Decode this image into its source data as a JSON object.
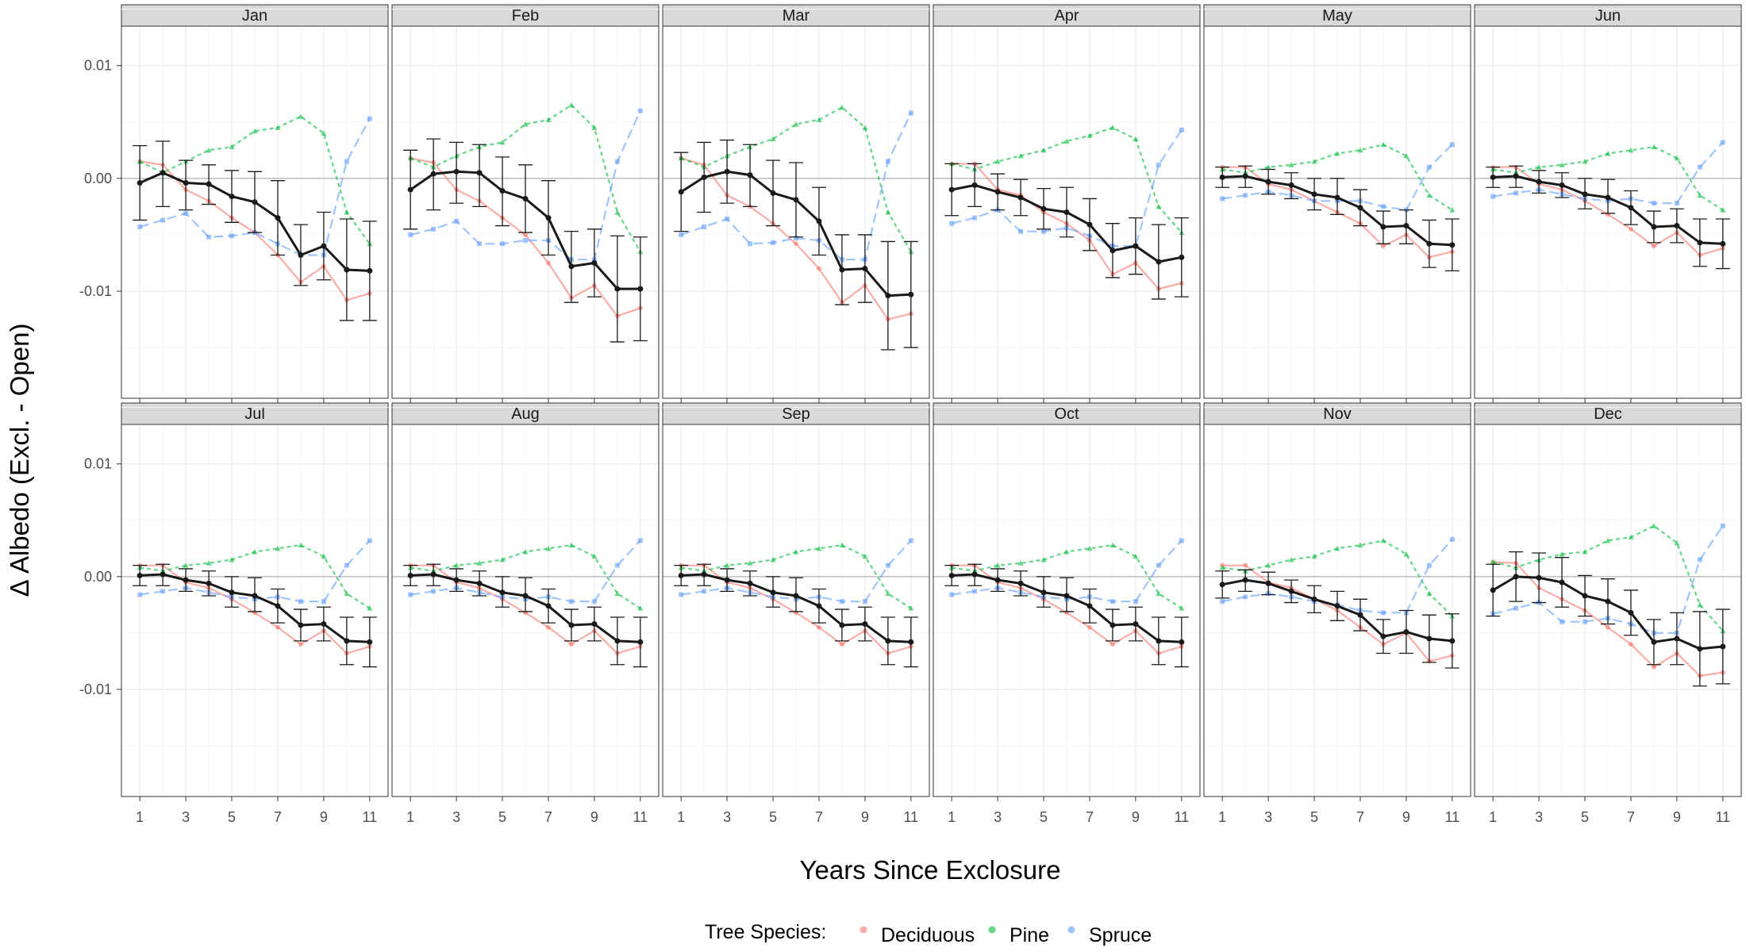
{
  "chart_data": {
    "type": "line",
    "xlabel": "Years Since Exclosure",
    "ylabel": "Δ Albedo (Excl. - Open)",
    "x_ticks": [
      "1",
      "3",
      "5",
      "7",
      "9",
      "11"
    ],
    "y_ticks": [
      "0.01",
      "0.00",
      "-0.01"
    ],
    "xlim": [
      0.2,
      11.8
    ],
    "ylim": [
      -0.0195,
      0.0135
    ],
    "grid": true,
    "legend": {
      "title": "Tree Species:",
      "position": "bottom",
      "entries": [
        "Deciduous",
        "Pine",
        "Spruce"
      ]
    },
    "colors": {
      "Deciduous": "#F8766D",
      "Pine": "#00BA38",
      "Spruce": "#619CFF",
      "mean": "#1a1a1a",
      "strip_bg": "#d9d9d9",
      "strip_border": "#333333",
      "panel_border": "#333333",
      "grid_major": "#ebebeb",
      "grid_minor": "#f5f5f5",
      "zero_line": "#bdbdbd"
    },
    "x": [
      1,
      2,
      3,
      4,
      5,
      6,
      7,
      8,
      9,
      10,
      11
    ],
    "panels": [
      {
        "month": "Jan",
        "deciduous": [
          0.0015,
          0.0012,
          -0.001,
          -0.002,
          -0.0035,
          -0.0048,
          -0.0068,
          -0.0092,
          -0.0078,
          -0.0108,
          -0.0102
        ],
        "pine": [
          0.0015,
          0.0005,
          0.0015,
          0.0025,
          0.0028,
          0.0042,
          0.0045,
          0.0055,
          0.004,
          -0.003,
          -0.0058
        ],
        "spruce": [
          -0.0043,
          -0.0037,
          -0.0031,
          -0.0052,
          -0.0051,
          -0.0048,
          -0.0058,
          -0.0068,
          -0.0068,
          0.0015,
          0.0053
        ],
        "mean": [
          -0.0004,
          0.0005,
          -0.0004,
          -0.0005,
          -0.0016,
          -0.0021,
          -0.0035,
          -0.0068,
          -0.006,
          -0.0081,
          -0.0082
        ],
        "err_lo": [
          -0.0037,
          -0.0025,
          -0.0028,
          -0.0023,
          -0.0039,
          -0.0048,
          -0.0068,
          -0.0095,
          -0.009,
          -0.0126,
          -0.0126
        ],
        "err_hi": [
          0.0029,
          0.0033,
          0.0016,
          0.0012,
          0.0007,
          0.0006,
          -0.0002,
          -0.0041,
          -0.003,
          -0.0036,
          -0.0038
        ]
      },
      {
        "month": "Feb",
        "deciduous": [
          0.0018,
          0.0014,
          -0.001,
          -0.002,
          -0.0035,
          -0.005,
          -0.0075,
          -0.0106,
          -0.0095,
          -0.0122,
          -0.0115
        ],
        "pine": [
          0.0018,
          0.001,
          0.002,
          0.0028,
          0.0032,
          0.0048,
          0.0052,
          0.0065,
          0.0045,
          -0.003,
          -0.0065
        ],
        "spruce": [
          -0.005,
          -0.0045,
          -0.0038,
          -0.0058,
          -0.0058,
          -0.0055,
          -0.0055,
          -0.0072,
          -0.0072,
          0.0015,
          0.006
        ],
        "mean": [
          -0.001,
          0.0004,
          0.0006,
          0.0005,
          -0.0011,
          -0.0018,
          -0.0035,
          -0.0078,
          -0.0075,
          -0.0098,
          -0.0098
        ],
        "err_lo": [
          -0.0045,
          -0.0028,
          -0.0022,
          -0.0025,
          -0.0042,
          -0.0048,
          -0.0068,
          -0.011,
          -0.0105,
          -0.0145,
          -0.0144
        ],
        "err_hi": [
          0.0025,
          0.0035,
          0.0032,
          0.003,
          0.0019,
          0.0012,
          -0.0002,
          -0.0047,
          -0.0045,
          -0.0051,
          -0.0052
        ]
      },
      {
        "month": "Mar",
        "deciduous": [
          0.0018,
          0.0012,
          -0.0015,
          -0.0025,
          -0.004,
          -0.0058,
          -0.008,
          -0.011,
          -0.0095,
          -0.0125,
          -0.012
        ],
        "pine": [
          0.0018,
          0.001,
          0.002,
          0.0028,
          0.0035,
          0.0048,
          0.0052,
          0.0063,
          0.0045,
          -0.003,
          -0.0065
        ],
        "spruce": [
          -0.005,
          -0.0043,
          -0.0036,
          -0.0058,
          -0.0057,
          -0.0053,
          -0.0055,
          -0.0072,
          -0.0072,
          0.0015,
          0.0058
        ],
        "mean": [
          -0.0012,
          0.0001,
          0.0006,
          0.0003,
          -0.0013,
          -0.0019,
          -0.0038,
          -0.0081,
          -0.008,
          -0.0104,
          -0.0103
        ],
        "err_lo": [
          -0.0047,
          -0.003,
          -0.0022,
          -0.0025,
          -0.0042,
          -0.0052,
          -0.0068,
          -0.0112,
          -0.011,
          -0.0152,
          -0.015
        ],
        "err_hi": [
          0.0023,
          0.0032,
          0.0034,
          0.003,
          0.0016,
          0.0014,
          -0.0008,
          -0.005,
          -0.005,
          -0.0056,
          -0.0056
        ]
      },
      {
        "month": "Apr",
        "deciduous": [
          0.0013,
          0.0013,
          -0.001,
          -0.0015,
          -0.003,
          -0.004,
          -0.0055,
          -0.0085,
          -0.0075,
          -0.0098,
          -0.0093
        ],
        "pine": [
          0.0013,
          0.0008,
          0.0015,
          0.002,
          0.0025,
          0.0033,
          0.0038,
          0.0045,
          0.0035,
          -0.0025,
          -0.0048
        ],
        "spruce": [
          -0.004,
          -0.0035,
          -0.0028,
          -0.0047,
          -0.0047,
          -0.0044,
          -0.0051,
          -0.006,
          -0.006,
          0.0012,
          0.0043
        ],
        "mean": [
          -0.001,
          -0.0006,
          -0.0012,
          -0.0017,
          -0.0027,
          -0.003,
          -0.0041,
          -0.0064,
          -0.006,
          -0.0074,
          -0.007
        ],
        "err_lo": [
          -0.0033,
          -0.0025,
          -0.0028,
          -0.0033,
          -0.0045,
          -0.0052,
          -0.0064,
          -0.0088,
          -0.0085,
          -0.0107,
          -0.0105
        ],
        "err_hi": [
          0.0013,
          0.0013,
          0.0004,
          -0.0001,
          -0.0009,
          -0.0008,
          -0.0018,
          -0.004,
          -0.0035,
          -0.0041,
          -0.0035
        ]
      },
      {
        "month": "May",
        "deciduous": [
          0.001,
          0.001,
          -0.0005,
          -0.001,
          -0.002,
          -0.003,
          -0.004,
          -0.006,
          -0.005,
          -0.007,
          -0.0065
        ],
        "pine": [
          0.0008,
          0.0005,
          0.001,
          0.0012,
          0.0015,
          0.0022,
          0.0025,
          0.003,
          0.002,
          -0.0015,
          -0.0028
        ],
        "spruce": [
          -0.0018,
          -0.0015,
          -0.0012,
          -0.0015,
          -0.002,
          -0.002,
          -0.002,
          -0.0025,
          -0.0028,
          0.001,
          0.003
        ],
        "mean": [
          0.0001,
          0.0002,
          -0.0003,
          -0.0006,
          -0.0014,
          -0.0017,
          -0.0026,
          -0.0043,
          -0.0042,
          -0.0058,
          -0.0059
        ],
        "err_lo": [
          -0.0008,
          -0.0008,
          -0.0014,
          -0.0018,
          -0.0028,
          -0.0032,
          -0.0042,
          -0.0058,
          -0.0058,
          -0.0079,
          -0.0082
        ],
        "err_hi": [
          0.001,
          0.0011,
          0.0008,
          0.0005,
          0.0,
          0.0,
          -0.001,
          -0.0029,
          -0.0028,
          -0.0037,
          -0.0036
        ]
      },
      {
        "month": "Jun",
        "deciduous": [
          0.001,
          0.001,
          -0.0005,
          -0.001,
          -0.002,
          -0.0032,
          -0.0045,
          -0.006,
          -0.0048,
          -0.0068,
          -0.0062
        ],
        "pine": [
          0.0008,
          0.0005,
          0.001,
          0.0012,
          0.0015,
          0.0022,
          0.0025,
          0.0028,
          0.0018,
          -0.0015,
          -0.0028
        ],
        "spruce": [
          -0.0016,
          -0.0013,
          -0.001,
          -0.0014,
          -0.0018,
          -0.002,
          -0.0018,
          -0.0022,
          -0.0022,
          0.001,
          0.0032
        ],
        "mean": [
          0.0001,
          0.0002,
          -0.0003,
          -0.0006,
          -0.0014,
          -0.0017,
          -0.0026,
          -0.0043,
          -0.0042,
          -0.0057,
          -0.0058
        ],
        "err_lo": [
          -0.0008,
          -0.0008,
          -0.0013,
          -0.0017,
          -0.0027,
          -0.0031,
          -0.0041,
          -0.0057,
          -0.0057,
          -0.0078,
          -0.008
        ],
        "err_hi": [
          0.001,
          0.0011,
          0.0007,
          0.0005,
          0.0,
          -0.0001,
          -0.0011,
          -0.0029,
          -0.0027,
          -0.0036,
          -0.0036
        ]
      },
      {
        "month": "Jul",
        "deciduous": [
          0.001,
          0.001,
          -0.0005,
          -0.001,
          -0.002,
          -0.0032,
          -0.0045,
          -0.006,
          -0.0048,
          -0.0068,
          -0.0062
        ],
        "pine": [
          0.0008,
          0.0005,
          0.001,
          0.0012,
          0.0015,
          0.0022,
          0.0025,
          0.0028,
          0.0018,
          -0.0015,
          -0.0028
        ],
        "spruce": [
          -0.0016,
          -0.0013,
          -0.001,
          -0.0014,
          -0.0018,
          -0.002,
          -0.0018,
          -0.0022,
          -0.0022,
          0.001,
          0.0032
        ],
        "mean": [
          0.0001,
          0.0002,
          -0.0003,
          -0.0006,
          -0.0014,
          -0.0017,
          -0.0026,
          -0.0043,
          -0.0042,
          -0.0057,
          -0.0058
        ],
        "err_lo": [
          -0.0008,
          -0.0008,
          -0.0013,
          -0.0017,
          -0.0027,
          -0.0031,
          -0.0041,
          -0.0057,
          -0.0057,
          -0.0078,
          -0.008
        ],
        "err_hi": [
          0.001,
          0.0011,
          0.0007,
          0.0005,
          0.0,
          -0.0001,
          -0.0011,
          -0.0029,
          -0.0027,
          -0.0036,
          -0.0036
        ]
      },
      {
        "month": "Aug",
        "deciduous": [
          0.001,
          0.001,
          -0.0005,
          -0.001,
          -0.002,
          -0.0032,
          -0.0045,
          -0.006,
          -0.0048,
          -0.0068,
          -0.0062
        ],
        "pine": [
          0.0008,
          0.0005,
          0.001,
          0.0012,
          0.0015,
          0.0022,
          0.0025,
          0.0028,
          0.0018,
          -0.0015,
          -0.0028
        ],
        "spruce": [
          -0.0016,
          -0.0013,
          -0.001,
          -0.0014,
          -0.0018,
          -0.002,
          -0.0018,
          -0.0022,
          -0.0022,
          0.001,
          0.0032
        ],
        "mean": [
          0.0001,
          0.0002,
          -0.0003,
          -0.0006,
          -0.0014,
          -0.0017,
          -0.0026,
          -0.0043,
          -0.0042,
          -0.0057,
          -0.0058
        ],
        "err_lo": [
          -0.0008,
          -0.0008,
          -0.0013,
          -0.0017,
          -0.0027,
          -0.0031,
          -0.0041,
          -0.0057,
          -0.0057,
          -0.0078,
          -0.008
        ],
        "err_hi": [
          0.001,
          0.0011,
          0.0007,
          0.0005,
          0.0,
          -0.0001,
          -0.0011,
          -0.0029,
          -0.0027,
          -0.0036,
          -0.0036
        ]
      },
      {
        "month": "Sep",
        "deciduous": [
          0.001,
          0.001,
          -0.0005,
          -0.001,
          -0.002,
          -0.0032,
          -0.0045,
          -0.006,
          -0.0048,
          -0.0068,
          -0.0062
        ],
        "pine": [
          0.0008,
          0.0005,
          0.001,
          0.0012,
          0.0015,
          0.0022,
          0.0025,
          0.0028,
          0.0018,
          -0.0015,
          -0.0028
        ],
        "spruce": [
          -0.0016,
          -0.0013,
          -0.001,
          -0.0014,
          -0.0018,
          -0.002,
          -0.0018,
          -0.0022,
          -0.0022,
          0.001,
          0.0032
        ],
        "mean": [
          0.0001,
          0.0002,
          -0.0003,
          -0.0006,
          -0.0014,
          -0.0017,
          -0.0026,
          -0.0043,
          -0.0042,
          -0.0057,
          -0.0058
        ],
        "err_lo": [
          -0.0008,
          -0.0008,
          -0.0013,
          -0.0017,
          -0.0027,
          -0.0031,
          -0.0041,
          -0.0057,
          -0.0057,
          -0.0078,
          -0.008
        ],
        "err_hi": [
          0.001,
          0.0011,
          0.0007,
          0.0005,
          0.0,
          -0.0001,
          -0.0011,
          -0.0029,
          -0.0027,
          -0.0036,
          -0.0036
        ]
      },
      {
        "month": "Oct",
        "deciduous": [
          0.001,
          0.001,
          -0.0005,
          -0.001,
          -0.002,
          -0.0032,
          -0.0045,
          -0.006,
          -0.0048,
          -0.0068,
          -0.0062
        ],
        "pine": [
          0.0008,
          0.0005,
          0.001,
          0.0012,
          0.0015,
          0.0022,
          0.0025,
          0.0028,
          0.0018,
          -0.0015,
          -0.0028
        ],
        "spruce": [
          -0.0016,
          -0.0013,
          -0.001,
          -0.0014,
          -0.0018,
          -0.002,
          -0.0018,
          -0.0022,
          -0.0022,
          0.001,
          0.0032
        ],
        "mean": [
          0.0001,
          0.0002,
          -0.0003,
          -0.0006,
          -0.0014,
          -0.0017,
          -0.0026,
          -0.0043,
          -0.0042,
          -0.0057,
          -0.0058
        ],
        "err_lo": [
          -0.0008,
          -0.0008,
          -0.0013,
          -0.0017,
          -0.0027,
          -0.0031,
          -0.0041,
          -0.0057,
          -0.0057,
          -0.0078,
          -0.008
        ],
        "err_hi": [
          0.001,
          0.0011,
          0.0007,
          0.0005,
          0.0,
          -0.0001,
          -0.0011,
          -0.0029,
          -0.0027,
          -0.0036,
          -0.0036
        ]
      },
      {
        "month": "Nov",
        "deciduous": [
          0.001,
          0.001,
          -0.0005,
          -0.001,
          -0.002,
          -0.003,
          -0.0045,
          -0.006,
          -0.005,
          -0.0075,
          -0.007
        ],
        "pine": [
          0.0008,
          0.0005,
          0.001,
          0.0015,
          0.0018,
          0.0025,
          0.0028,
          0.0032,
          0.002,
          -0.0015,
          -0.0035
        ],
        "spruce": [
          -0.0022,
          -0.0018,
          -0.0015,
          -0.0018,
          -0.0022,
          -0.0025,
          -0.003,
          -0.0032,
          -0.0032,
          0.001,
          0.0033
        ],
        "mean": [
          -0.0007,
          -0.0003,
          -0.0006,
          -0.0013,
          -0.002,
          -0.0026,
          -0.0034,
          -0.0053,
          -0.0049,
          -0.0055,
          -0.0057
        ],
        "err_lo": [
          -0.0019,
          -0.0013,
          -0.0016,
          -0.0023,
          -0.0032,
          -0.0039,
          -0.0048,
          -0.0068,
          -0.0068,
          -0.0076,
          -0.0081
        ],
        "err_hi": [
          0.0005,
          0.0006,
          0.0004,
          -0.0003,
          -0.0008,
          -0.0013,
          -0.002,
          -0.0038,
          -0.003,
          -0.0034,
          -0.0033
        ]
      },
      {
        "month": "Dec",
        "deciduous": [
          0.0013,
          0.0012,
          -0.001,
          -0.002,
          -0.003,
          -0.0045,
          -0.006,
          -0.008,
          -0.0068,
          -0.0088,
          -0.0085
        ],
        "pine": [
          0.0013,
          0.0008,
          0.0015,
          0.002,
          0.0022,
          0.0032,
          0.0035,
          0.0045,
          0.003,
          -0.0025,
          -0.0048
        ],
        "spruce": [
          -0.0033,
          -0.0028,
          -0.0023,
          -0.004,
          -0.004,
          -0.0037,
          -0.0042,
          -0.005,
          -0.005,
          0.0015,
          0.0045
        ],
        "mean": [
          -0.0012,
          0.0,
          -0.0001,
          -0.0005,
          -0.0017,
          -0.0022,
          -0.0032,
          -0.0058,
          -0.0055,
          -0.0064,
          -0.0062
        ],
        "err_lo": [
          -0.0035,
          -0.0022,
          -0.0023,
          -0.0027,
          -0.0035,
          -0.0042,
          -0.0052,
          -0.0078,
          -0.0078,
          -0.0097,
          -0.0095
        ],
        "err_hi": [
          0.0011,
          0.0022,
          0.0021,
          0.0017,
          0.0001,
          -0.0002,
          -0.0012,
          -0.0038,
          -0.0032,
          -0.0031,
          -0.0029
        ]
      }
    ]
  }
}
